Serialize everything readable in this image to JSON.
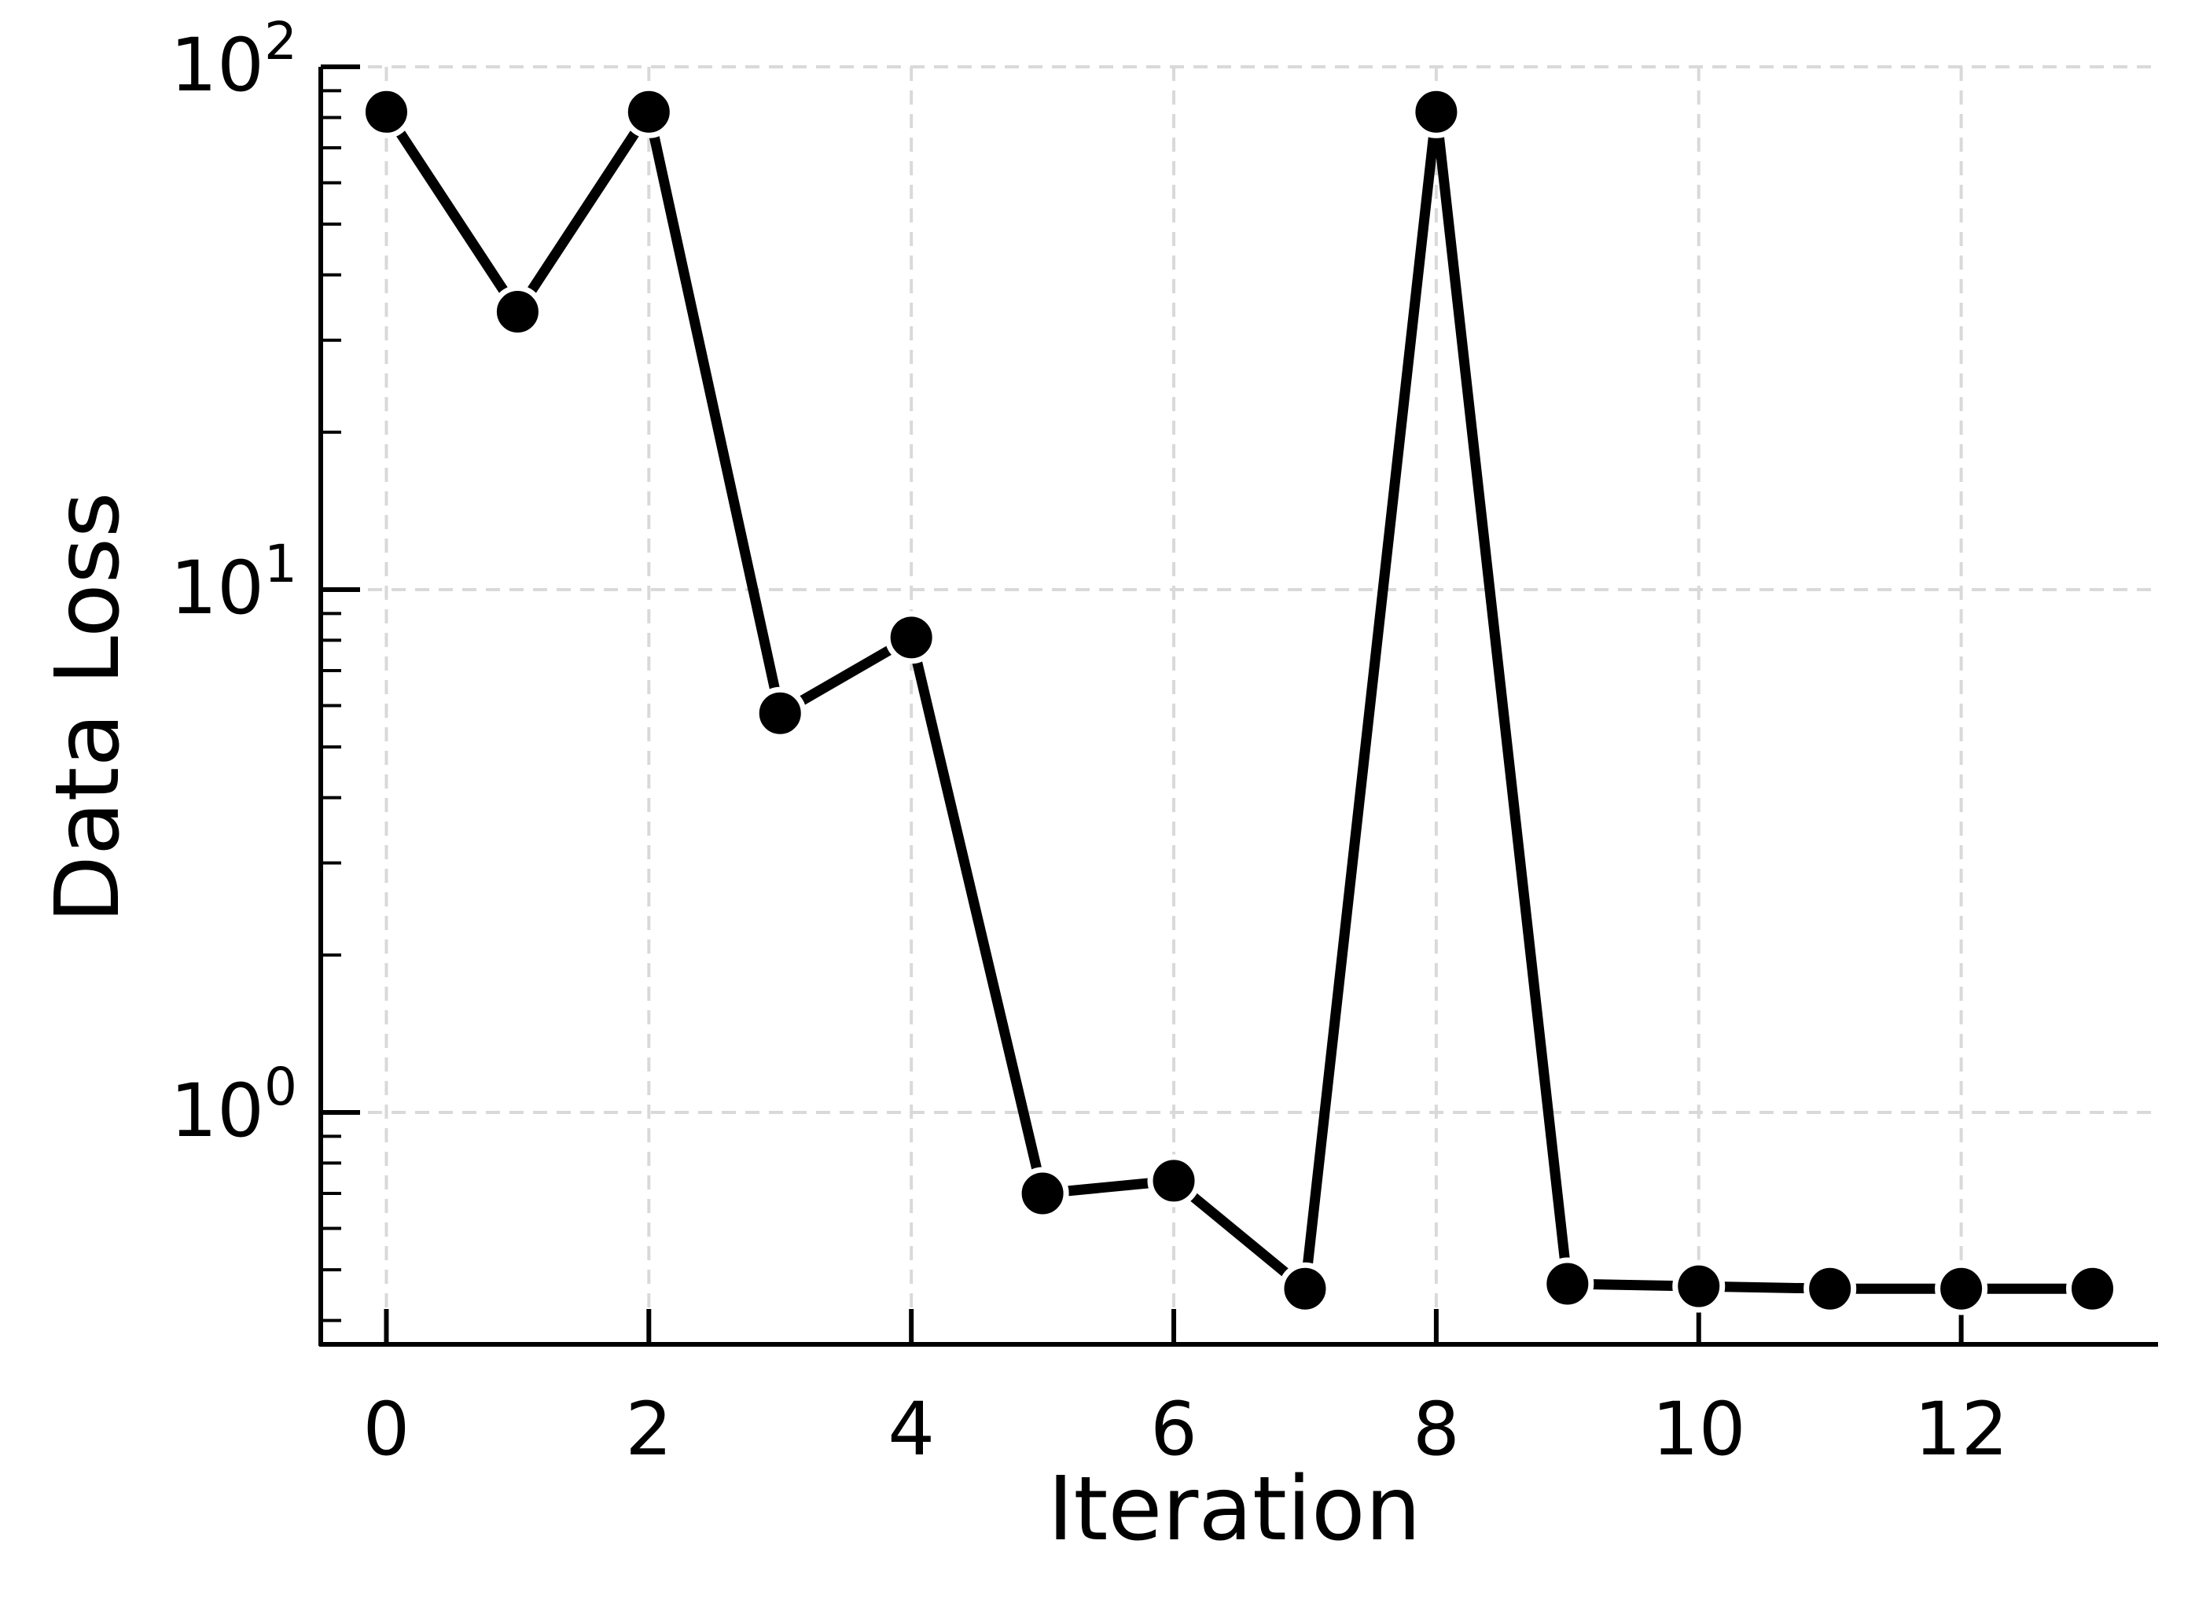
{
  "chart_data": {
    "type": "line",
    "title": "",
    "xlabel": "Iteration",
    "ylabel": "Data Loss",
    "x": [
      0,
      1,
      2,
      3,
      4,
      5,
      6,
      7,
      8,
      9,
      10,
      11,
      12,
      13
    ],
    "series": [
      {
        "values": [
          82,
          34,
          82,
          5.8,
          8.1,
          0.7,
          0.74,
          0.46,
          82,
          0.47,
          0.465,
          0.46,
          0.46,
          0.46
        ],
        "color": "#000000",
        "marker": "circle"
      }
    ],
    "xlim": [
      -0.5,
      13.5
    ],
    "ylim": [
      0.36,
      100
    ],
    "yscale": "log",
    "x_ticks": [
      {
        "value": 0,
        "label": "0"
      },
      {
        "value": 2,
        "label": "2"
      },
      {
        "value": 4,
        "label": "4"
      },
      {
        "value": 6,
        "label": "6"
      },
      {
        "value": 8,
        "label": "8"
      },
      {
        "value": 10,
        "label": "10"
      },
      {
        "value": 12,
        "label": "12"
      }
    ],
    "y_ticks": [
      {
        "value": 1,
        "base": "10",
        "exp": "0"
      },
      {
        "value": 10,
        "base": "10",
        "exp": "1"
      },
      {
        "value": 100,
        "base": "10",
        "exp": "2"
      }
    ],
    "grid": true,
    "legend": "none"
  }
}
